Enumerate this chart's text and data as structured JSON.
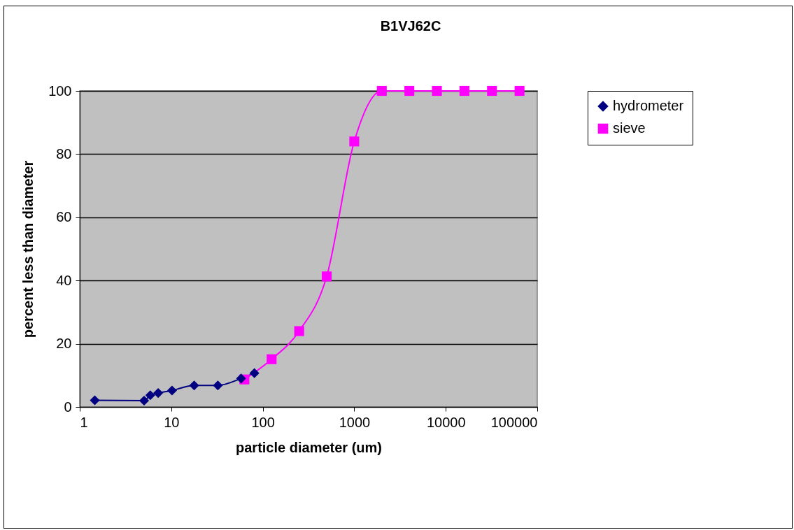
{
  "chart_data": {
    "type": "line",
    "title": "B1VJ62C",
    "xlabel": "particle diameter  (um)",
    "ylabel": "percent  less  than  diameter",
    "log": "x",
    "xlim": [
      1,
      100000
    ],
    "xticks": [
      1,
      10,
      100,
      1000,
      10000,
      100000
    ],
    "ylim": [
      0,
      100
    ],
    "yticks": [
      0,
      20,
      40,
      60,
      80,
      100
    ],
    "grid": "y",
    "legend": "right",
    "series": [
      {
        "name": "hydrometer",
        "color": "#000080",
        "marker": "diamond",
        "x": [
          1.46,
          5.05,
          5.9,
          7.2,
          10.2,
          17.8,
          32.3,
          58,
          81
        ],
        "values": [
          2.1,
          2.0,
          3.7,
          4.4,
          5.2,
          6.8,
          6.8,
          9.0,
          10.7
        ]
      },
      {
        "name": "sieve",
        "color": "#ff00ff",
        "marker": "square",
        "x": [
          63,
          125,
          250,
          500,
          1000,
          2000,
          4000,
          8000,
          16000,
          32000,
          64000
        ],
        "values": [
          8.7,
          15.1,
          24.0,
          41.3,
          84.0,
          100,
          100,
          100,
          100,
          100,
          100
        ]
      }
    ]
  }
}
